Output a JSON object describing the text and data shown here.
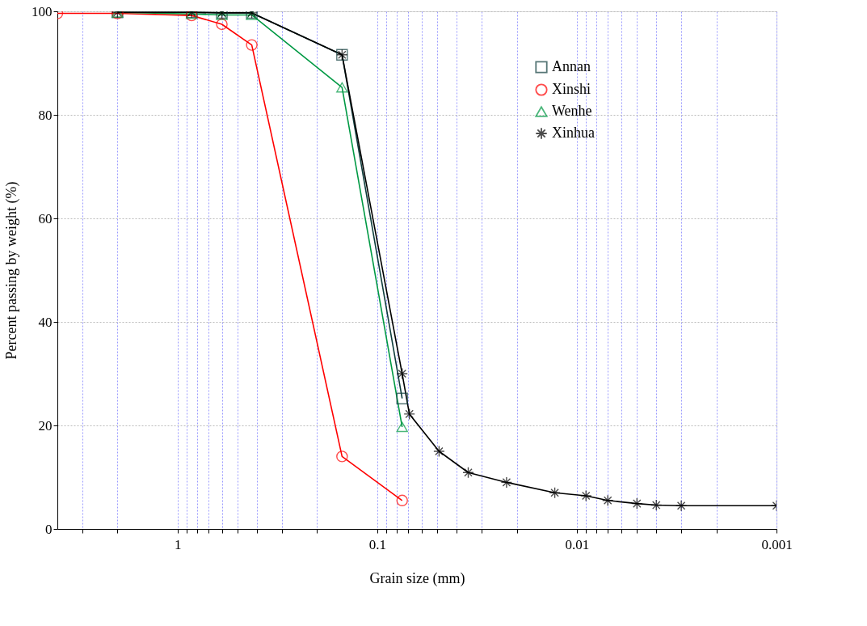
{
  "chart_data": {
    "type": "line",
    "xlabel": "Grain size (mm)",
    "ylabel": "Percent passing by weight (%)",
    "log": "x",
    "xlim": [
      4,
      0.001
    ],
    "ylim": [
      0,
      100
    ],
    "xticks": [
      {
        "value": 3,
        "label": null
      },
      {
        "value": 2,
        "label": null
      },
      1,
      {
        "value": 0.9,
        "label": null
      },
      {
        "value": 0.8,
        "label": null
      },
      {
        "value": 0.7,
        "label": null
      },
      {
        "value": 0.6,
        "label": null
      },
      {
        "value": 0.5,
        "label": null
      },
      {
        "value": 0.4,
        "label": null
      },
      {
        "value": 0.3,
        "label": null
      },
      {
        "value": 0.2,
        "label": null
      },
      0.1,
      {
        "value": 0.09,
        "label": null
      },
      {
        "value": 0.08,
        "label": null
      },
      {
        "value": 0.07,
        "label": null
      },
      {
        "value": 0.06,
        "label": null
      },
      {
        "value": 0.05,
        "label": null
      },
      {
        "value": 0.04,
        "label": null
      },
      {
        "value": 0.03,
        "label": null
      },
      {
        "value": 0.02,
        "label": null
      },
      0.01,
      {
        "value": 0.009,
        "label": null
      },
      {
        "value": 0.008,
        "label": null
      },
      {
        "value": 0.007,
        "label": null
      },
      {
        "value": 0.006,
        "label": null
      },
      {
        "value": 0.005,
        "label": null
      },
      {
        "value": 0.004,
        "label": null
      },
      {
        "value": 0.003,
        "label": null
      },
      {
        "value": 0.002,
        "label": null
      },
      0.001
    ],
    "yticks": [
      0,
      20,
      40,
      60,
      80,
      100
    ],
    "grid": true,
    "legend": "top right",
    "line_style": "solid",
    "series": [
      {
        "name": "Annan",
        "color": "#0f3d3d",
        "marker": "square",
        "x": [
          2,
          0.85,
          0.6,
          0.425,
          0.15,
          0.075
        ],
        "values": [
          99.8,
          99.8,
          99.7,
          99.7,
          91.6,
          25.2
        ]
      },
      {
        "name": "Xinshi",
        "color": "#ff0000",
        "marker": "circle",
        "x": [
          4,
          2,
          0.85,
          0.6,
          0.425,
          0.15,
          0.075
        ],
        "values": [
          99.6,
          99.6,
          99.2,
          97.5,
          93.5,
          14,
          5.5
        ]
      },
      {
        "name": "Wenhe",
        "color": "#009944",
        "marker": "triangle",
        "x": [
          2,
          0.85,
          0.6,
          0.425,
          0.15,
          0.075
        ],
        "values": [
          99.8,
          99.5,
          99.3,
          99.3,
          85.3,
          19.7
        ]
      },
      {
        "name": "Xinhua",
        "color": "#000000",
        "marker": "cross",
        "x": [
          2,
          0.85,
          0.6,
          0.425,
          0.15,
          0.075,
          0.069,
          0.049,
          0.035,
          0.0225,
          0.0129,
          0.009,
          0.007,
          0.005,
          0.004,
          0.003,
          0.001
        ],
        "values": [
          99.8,
          99.8,
          99.7,
          99.7,
          91.6,
          30,
          22.2,
          15,
          10.9,
          9,
          7,
          6.4,
          5.5,
          4.9,
          4.6,
          4.5,
          4.5
        ]
      }
    ]
  }
}
